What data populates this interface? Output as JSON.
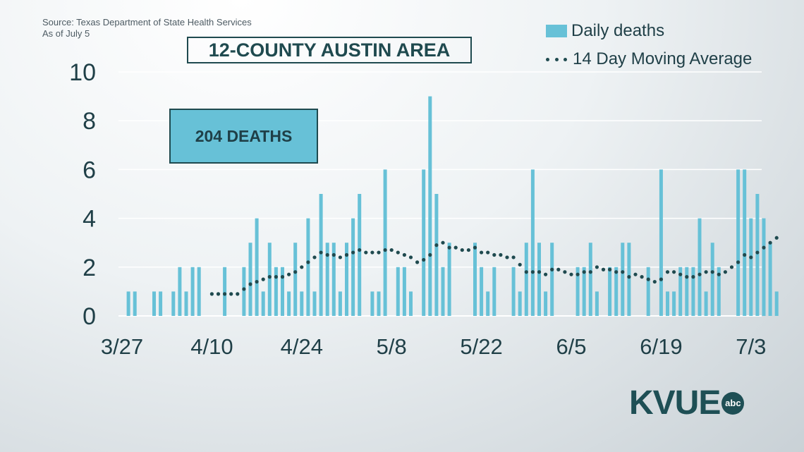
{
  "source": {
    "line1": "Source: Texas Department of State Health Services",
    "line2": "As of July 5"
  },
  "title": "12-COUNTY AUSTIN AREA",
  "total_box": "204 DEATHS",
  "logo": {
    "text": "KVUE",
    "badge": "abc"
  },
  "colors": {
    "bar": "#67c1d7",
    "dots": "#1f4a4f",
    "text": "#1f3f47",
    "grid": "#ffffff"
  },
  "chart_data": {
    "type": "bar",
    "ylim": [
      0,
      10
    ],
    "yticks": [
      0,
      2,
      4,
      6,
      8,
      10
    ],
    "x_start": "3/27",
    "x_ticks": [
      {
        "label": "3/27",
        "index": 0
      },
      {
        "label": "4/10",
        "index": 14
      },
      {
        "label": "4/24",
        "index": 28
      },
      {
        "label": "5/8",
        "index": 42
      },
      {
        "label": "5/22",
        "index": 56
      },
      {
        "label": "6/5",
        "index": 70
      },
      {
        "label": "6/19",
        "index": 84
      },
      {
        "label": "7/3",
        "index": 98
      }
    ],
    "series": [
      {
        "name": "Daily deaths",
        "type": "bar",
        "values": [
          0,
          1,
          1,
          0,
          0,
          1,
          1,
          0,
          1,
          2,
          1,
          2,
          2,
          0,
          0,
          0,
          2,
          0,
          0,
          2,
          3,
          4,
          1,
          3,
          2,
          2,
          1,
          3,
          1,
          4,
          1,
          5,
          3,
          3,
          1,
          3,
          4,
          5,
          0,
          1,
          1,
          6,
          0,
          2,
          2,
          1,
          0,
          6,
          9,
          5,
          2,
          3,
          0,
          0,
          0,
          3,
          2,
          1,
          2,
          0,
          0,
          2,
          1,
          3,
          6,
          3,
          1,
          3,
          0,
          0,
          0,
          2,
          2,
          3,
          1,
          0,
          2,
          2,
          3,
          3,
          0,
          0,
          2,
          0,
          6,
          1,
          1,
          2,
          2,
          2,
          4,
          1,
          3,
          2,
          0,
          0,
          6,
          6,
          4,
          5,
          4,
          3,
          1
        ]
      },
      {
        "name": "14 Day Moving Average",
        "type": "line",
        "values": [
          null,
          null,
          null,
          null,
          null,
          null,
          null,
          null,
          null,
          null,
          null,
          null,
          null,
          null,
          0.9,
          0.9,
          0.9,
          0.9,
          0.9,
          1.1,
          1.3,
          1.4,
          1.5,
          1.6,
          1.6,
          1.6,
          1.7,
          1.8,
          2.0,
          2.2,
          2.4,
          2.6,
          2.5,
          2.5,
          2.4,
          2.5,
          2.6,
          2.7,
          2.6,
          2.6,
          2.6,
          2.7,
          2.7,
          2.6,
          2.5,
          2.4,
          2.2,
          2.3,
          2.5,
          2.9,
          3.0,
          2.8,
          2.8,
          2.7,
          2.7,
          2.8,
          2.6,
          2.6,
          2.5,
          2.5,
          2.4,
          2.4,
          2.1,
          1.8,
          1.8,
          1.8,
          1.7,
          1.9,
          1.9,
          1.8,
          1.7,
          1.7,
          1.8,
          1.8,
          2.0,
          1.9,
          1.9,
          1.8,
          1.8,
          1.6,
          1.7,
          1.6,
          1.5,
          1.4,
          1.5,
          1.8,
          1.8,
          1.7,
          1.6,
          1.6,
          1.7,
          1.8,
          1.8,
          1.7,
          1.8,
          2.0,
          2.2,
          2.5,
          2.4,
          2.6,
          2.8,
          3.0,
          3.2
        ]
      }
    ]
  }
}
